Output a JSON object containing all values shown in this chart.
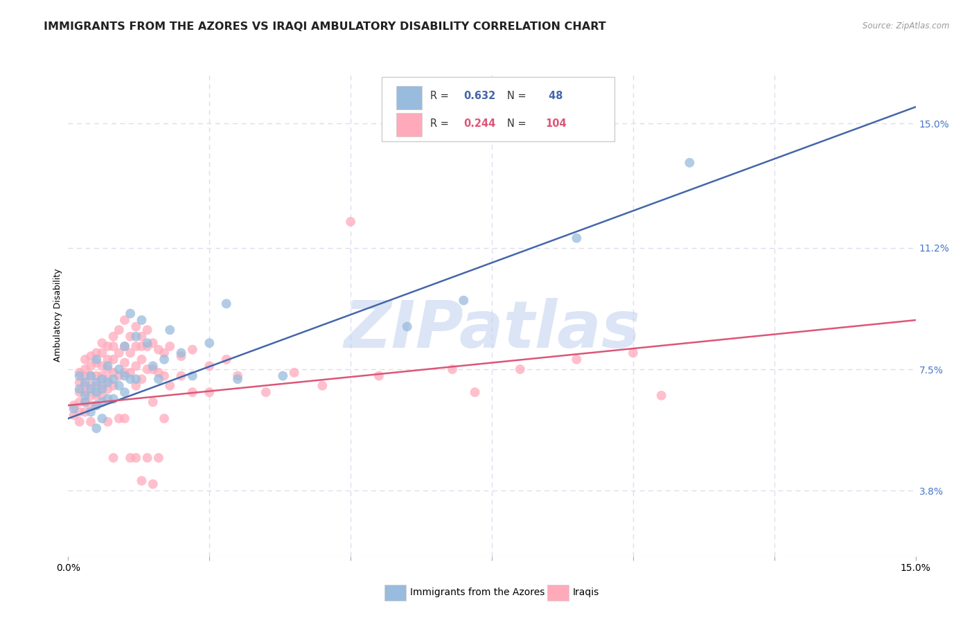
{
  "title": "IMMIGRANTS FROM THE AZORES VS IRAQI AMBULATORY DISABILITY CORRELATION CHART",
  "source": "Source: ZipAtlas.com",
  "ylabel": "Ambulatory Disability",
  "ytick_labels": [
    "15.0%",
    "11.2%",
    "7.5%",
    "3.8%"
  ],
  "ytick_values": [
    0.15,
    0.112,
    0.075,
    0.038
  ],
  "xlim": [
    0.0,
    0.15
  ],
  "ylim": [
    0.018,
    0.165
  ],
  "color_blue": "#99BBDD",
  "color_pink": "#FFAABB",
  "color_blue_line": "#4466AA",
  "color_pink_line": "#DD5577",
  "watermark": "ZIPatlas",
  "watermark_color": "#BBCCEE",
  "blue_scatter": [
    [
      0.001,
      0.063
    ],
    [
      0.002,
      0.073
    ],
    [
      0.002,
      0.069
    ],
    [
      0.003,
      0.071
    ],
    [
      0.003,
      0.067
    ],
    [
      0.003,
      0.065
    ],
    [
      0.004,
      0.073
    ],
    [
      0.004,
      0.069
    ],
    [
      0.004,
      0.062
    ],
    [
      0.005,
      0.078
    ],
    [
      0.005,
      0.071
    ],
    [
      0.005,
      0.068
    ],
    [
      0.005,
      0.064
    ],
    [
      0.005,
      0.057
    ],
    [
      0.006,
      0.072
    ],
    [
      0.006,
      0.069
    ],
    [
      0.006,
      0.065
    ],
    [
      0.006,
      0.06
    ],
    [
      0.007,
      0.076
    ],
    [
      0.007,
      0.071
    ],
    [
      0.007,
      0.066
    ],
    [
      0.008,
      0.072
    ],
    [
      0.008,
      0.066
    ],
    [
      0.009,
      0.075
    ],
    [
      0.009,
      0.07
    ],
    [
      0.01,
      0.082
    ],
    [
      0.01,
      0.073
    ],
    [
      0.01,
      0.068
    ],
    [
      0.011,
      0.092
    ],
    [
      0.011,
      0.072
    ],
    [
      0.012,
      0.085
    ],
    [
      0.012,
      0.072
    ],
    [
      0.013,
      0.09
    ],
    [
      0.014,
      0.083
    ],
    [
      0.015,
      0.076
    ],
    [
      0.016,
      0.072
    ],
    [
      0.017,
      0.078
    ],
    [
      0.018,
      0.087
    ],
    [
      0.02,
      0.08
    ],
    [
      0.022,
      0.073
    ],
    [
      0.025,
      0.083
    ],
    [
      0.028,
      0.095
    ],
    [
      0.03,
      0.072
    ],
    [
      0.038,
      0.073
    ],
    [
      0.06,
      0.088
    ],
    [
      0.07,
      0.096
    ],
    [
      0.09,
      0.115
    ],
    [
      0.11,
      0.138
    ]
  ],
  "pink_scatter": [
    [
      0.001,
      0.064
    ],
    [
      0.001,
      0.061
    ],
    [
      0.002,
      0.074
    ],
    [
      0.002,
      0.071
    ],
    [
      0.002,
      0.068
    ],
    [
      0.002,
      0.065
    ],
    [
      0.002,
      0.062
    ],
    [
      0.002,
      0.059
    ],
    [
      0.003,
      0.078
    ],
    [
      0.003,
      0.075
    ],
    [
      0.003,
      0.073
    ],
    [
      0.003,
      0.07
    ],
    [
      0.003,
      0.068
    ],
    [
      0.003,
      0.065
    ],
    [
      0.003,
      0.062
    ],
    [
      0.004,
      0.079
    ],
    [
      0.004,
      0.076
    ],
    [
      0.004,
      0.073
    ],
    [
      0.004,
      0.07
    ],
    [
      0.004,
      0.067
    ],
    [
      0.004,
      0.064
    ],
    [
      0.004,
      0.059
    ],
    [
      0.005,
      0.08
    ],
    [
      0.005,
      0.077
    ],
    [
      0.005,
      0.073
    ],
    [
      0.005,
      0.07
    ],
    [
      0.005,
      0.067
    ],
    [
      0.005,
      0.064
    ],
    [
      0.006,
      0.083
    ],
    [
      0.006,
      0.08
    ],
    [
      0.006,
      0.076
    ],
    [
      0.006,
      0.073
    ],
    [
      0.006,
      0.07
    ],
    [
      0.006,
      0.067
    ],
    [
      0.007,
      0.082
    ],
    [
      0.007,
      0.078
    ],
    [
      0.007,
      0.075
    ],
    [
      0.007,
      0.072
    ],
    [
      0.007,
      0.069
    ],
    [
      0.007,
      0.059
    ],
    [
      0.008,
      0.085
    ],
    [
      0.008,
      0.082
    ],
    [
      0.008,
      0.078
    ],
    [
      0.008,
      0.074
    ],
    [
      0.008,
      0.07
    ],
    [
      0.008,
      0.048
    ],
    [
      0.009,
      0.087
    ],
    [
      0.009,
      0.08
    ],
    [
      0.009,
      0.073
    ],
    [
      0.009,
      0.06
    ],
    [
      0.01,
      0.09
    ],
    [
      0.01,
      0.082
    ],
    [
      0.01,
      0.077
    ],
    [
      0.01,
      0.074
    ],
    [
      0.01,
      0.06
    ],
    [
      0.011,
      0.085
    ],
    [
      0.011,
      0.08
    ],
    [
      0.011,
      0.074
    ],
    [
      0.011,
      0.048
    ],
    [
      0.012,
      0.088
    ],
    [
      0.012,
      0.082
    ],
    [
      0.012,
      0.076
    ],
    [
      0.012,
      0.07
    ],
    [
      0.012,
      0.048
    ],
    [
      0.013,
      0.085
    ],
    [
      0.013,
      0.082
    ],
    [
      0.013,
      0.078
    ],
    [
      0.013,
      0.072
    ],
    [
      0.013,
      0.041
    ],
    [
      0.014,
      0.087
    ],
    [
      0.014,
      0.082
    ],
    [
      0.014,
      0.075
    ],
    [
      0.014,
      0.048
    ],
    [
      0.015,
      0.083
    ],
    [
      0.015,
      0.075
    ],
    [
      0.015,
      0.065
    ],
    [
      0.015,
      0.04
    ],
    [
      0.016,
      0.081
    ],
    [
      0.016,
      0.074
    ],
    [
      0.016,
      0.048
    ],
    [
      0.017,
      0.08
    ],
    [
      0.017,
      0.073
    ],
    [
      0.017,
      0.06
    ],
    [
      0.018,
      0.082
    ],
    [
      0.018,
      0.07
    ],
    [
      0.02,
      0.079
    ],
    [
      0.02,
      0.073
    ],
    [
      0.022,
      0.081
    ],
    [
      0.022,
      0.068
    ],
    [
      0.025,
      0.076
    ],
    [
      0.025,
      0.068
    ],
    [
      0.028,
      0.078
    ],
    [
      0.03,
      0.073
    ],
    [
      0.035,
      0.068
    ],
    [
      0.04,
      0.074
    ],
    [
      0.045,
      0.07
    ],
    [
      0.05,
      0.12
    ],
    [
      0.055,
      0.073
    ],
    [
      0.068,
      0.075
    ],
    [
      0.072,
      0.068
    ],
    [
      0.08,
      0.075
    ],
    [
      0.09,
      0.078
    ],
    [
      0.1,
      0.08
    ],
    [
      0.105,
      0.067
    ]
  ],
  "blue_line_x": [
    0.0,
    0.15
  ],
  "blue_line_y": [
    0.06,
    0.155
  ],
  "pink_line_x": [
    0.0,
    0.15
  ],
  "pink_line_y": [
    0.064,
    0.09
  ],
  "grid_color": "#DDDDEE",
  "xtick_positions": [
    0.0,
    0.025,
    0.05,
    0.075,
    0.1,
    0.125,
    0.15
  ],
  "title_fontsize": 11.5,
  "axis_label_fontsize": 9,
  "tick_fontsize": 10
}
